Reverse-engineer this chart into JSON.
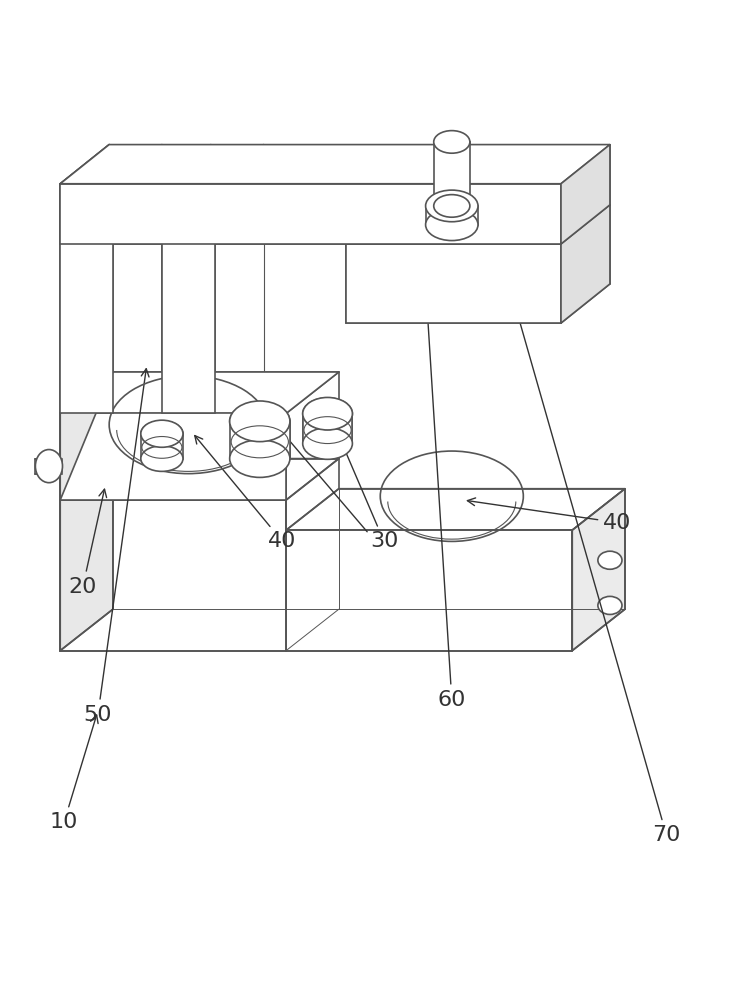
{
  "bg_color": "#ffffff",
  "line_color": "#555555",
  "line_width": 1.2,
  "annotation_color": "#333333",
  "font_size_label": 16
}
